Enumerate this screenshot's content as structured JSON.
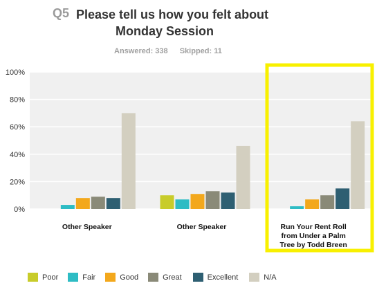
{
  "header": {
    "qnum": "Q5",
    "title_line1": "Please tell us how you felt about",
    "title_line2": "Monday Session",
    "answered": "Answered: 338",
    "skipped": "Skipped: 11"
  },
  "colors": {
    "Poor": "#c8cc2a",
    "Fair": "#2ebcc4",
    "Good": "#f3a81c",
    "Great": "#8a8a78",
    "Excellent": "#2e5f72",
    "N/A": "#d3cfc0",
    "highlight": "#f8f000"
  },
  "chart_data": {
    "type": "bar",
    "categories": [
      "Other Speaker",
      "Other Speaker",
      "Run Your Rent Roll from Under a Palm Tree by Todd Breen"
    ],
    "category_lines": [
      [
        "Other Speaker"
      ],
      [
        "Other Speaker"
      ],
      [
        "Run Your Rent Roll",
        "from Under a Palm",
        "Tree by Todd Breen"
      ]
    ],
    "series": [
      {
        "name": "Poor",
        "values": [
          0,
          10,
          0
        ]
      },
      {
        "name": "Fair",
        "values": [
          3,
          7,
          2
        ]
      },
      {
        "name": "Good",
        "values": [
          8,
          11,
          7
        ]
      },
      {
        "name": "Great",
        "values": [
          9,
          13,
          10
        ]
      },
      {
        "name": "Excellent",
        "values": [
          8,
          12,
          15
        ]
      },
      {
        "name": "N/A",
        "values": [
          70,
          46,
          64
        ]
      }
    ],
    "y_ticks": [
      "0%",
      "20%",
      "40%",
      "60%",
      "80%",
      "100%"
    ],
    "ylim": [
      0,
      100
    ],
    "grid": true,
    "legend_position": "bottom",
    "highlighted_category": 2
  }
}
